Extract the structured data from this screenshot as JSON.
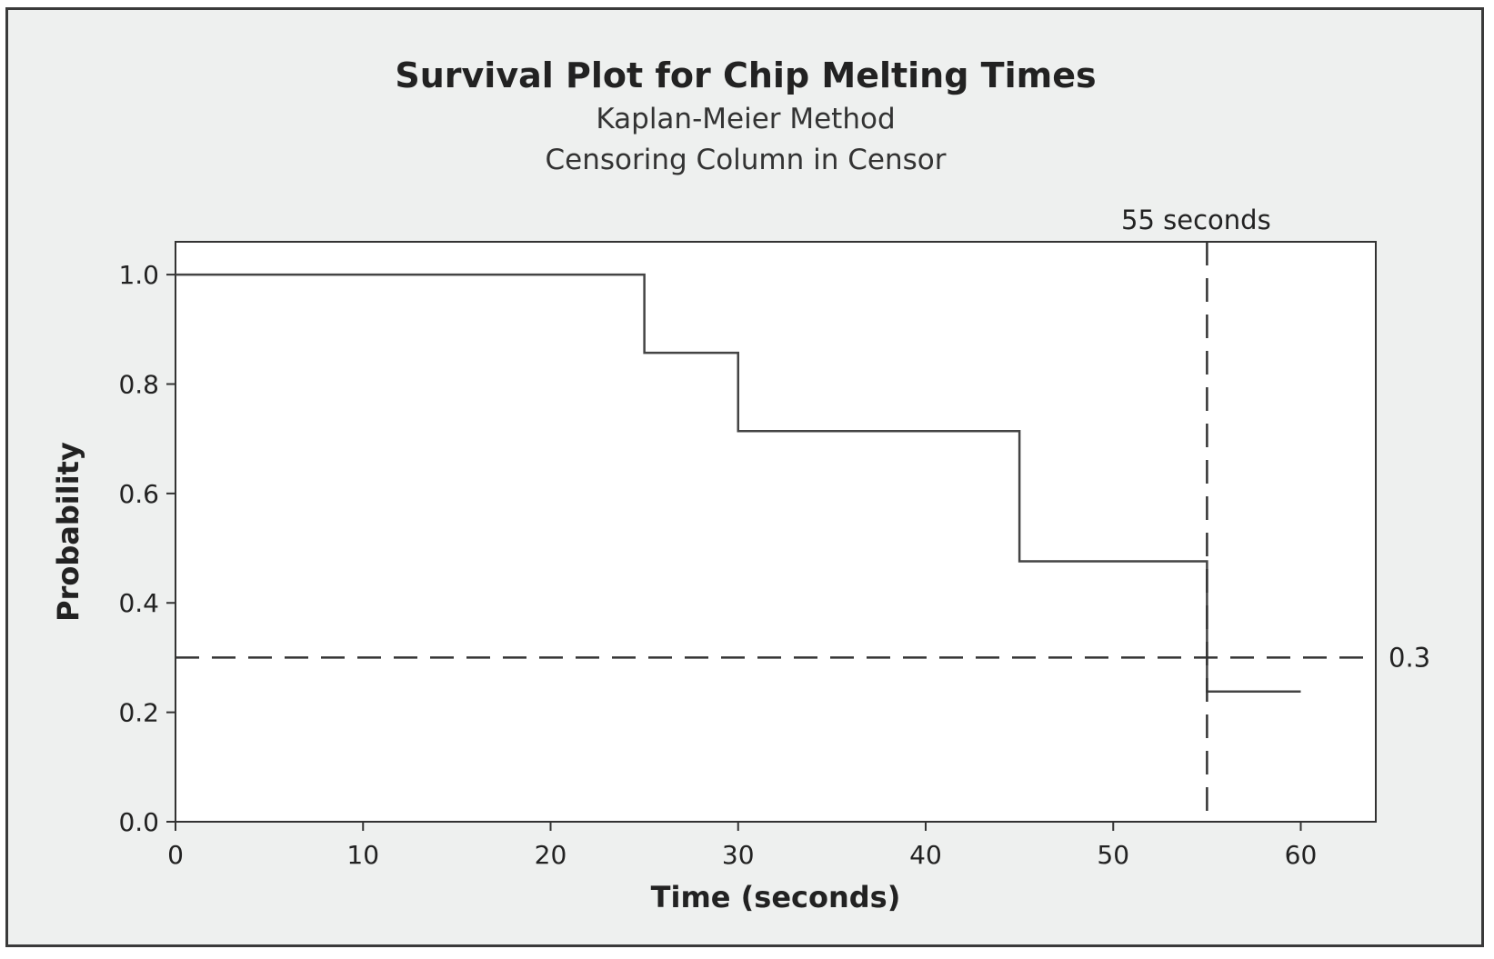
{
  "chart_data": {
    "type": "line",
    "title": "Survival Plot for Chip Melting Times",
    "subtitles": [
      "Kaplan-Meier Method",
      "Censoring Column in Censor"
    ],
    "xlabel": "Time (seconds)",
    "ylabel": "Probability",
    "xlim": [
      0,
      64
    ],
    "ylim": [
      0,
      1.06
    ],
    "xticks": [
      0,
      10,
      20,
      30,
      40,
      50,
      60
    ],
    "yticks": [
      "0.0",
      "0.2",
      "0.4",
      "0.6",
      "0.8",
      "1.0"
    ],
    "grid": false,
    "series": [
      {
        "style": "step",
        "x": [
          0,
          25,
          30,
          45,
          55,
          60
        ],
        "y": [
          1.0,
          0.857,
          0.714,
          0.476,
          0.238,
          0.238
        ]
      }
    ],
    "reference_lines": {
      "vertical": {
        "x": 55,
        "label": "55 seconds"
      },
      "horizontal": {
        "y": 0.3,
        "label": "0.3"
      }
    }
  }
}
